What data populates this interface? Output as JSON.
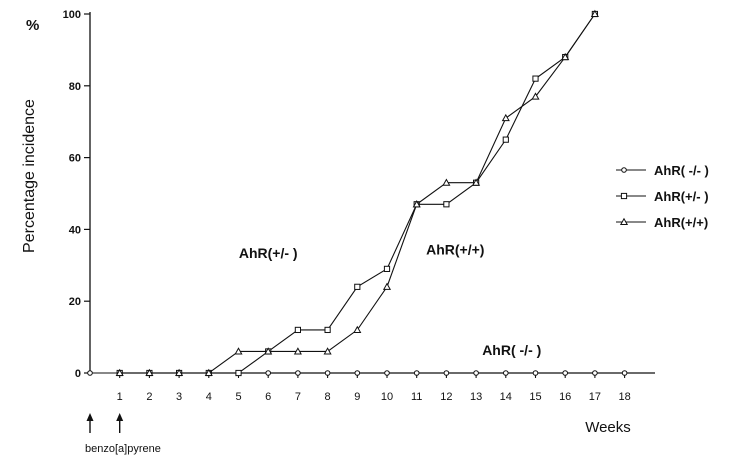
{
  "chart_data": {
    "type": "line",
    "title": "",
    "y_unit": "%",
    "ylabel": "Percentage incidence",
    "xlabel": "Weeks",
    "ylim": [
      0,
      100
    ],
    "xlim": [
      0,
      18
    ],
    "y_ticks": [
      "0",
      "20",
      "40",
      "60",
      "80",
      "100"
    ],
    "x_ticks": [
      "1",
      "2",
      "3",
      "4",
      "5",
      "6",
      "7",
      "8",
      "9",
      "10",
      "11",
      "12",
      "13",
      "14",
      "15",
      "16",
      "17",
      "18"
    ],
    "grid": false,
    "legend_position": "right",
    "series": [
      {
        "name": "AhR( -/- )",
        "marker": "circle",
        "x": [
          0,
          1,
          2,
          3,
          4,
          5,
          6,
          7,
          8,
          9,
          10,
          11,
          12,
          13,
          14,
          15,
          16,
          17,
          18
        ],
        "y": [
          0,
          0,
          0,
          0,
          0,
          0,
          0,
          0,
          0,
          0,
          0,
          0,
          0,
          0,
          0,
          0,
          0,
          0,
          0
        ]
      },
      {
        "name": "AhR(+/- )",
        "marker": "square",
        "x": [
          1,
          2,
          3,
          4,
          5,
          6,
          7,
          8,
          9,
          10,
          11,
          12,
          13,
          14,
          15,
          16,
          17
        ],
        "y": [
          0,
          0,
          0,
          0,
          0,
          6,
          12,
          12,
          24,
          29,
          47,
          47,
          53,
          65,
          82,
          88,
          100
        ]
      },
      {
        "name": "AhR(+/+)",
        "marker": "triangle",
        "x": [
          1,
          2,
          3,
          4,
          5,
          6,
          7,
          8,
          9,
          10,
          11,
          12,
          13,
          14,
          15,
          16,
          17
        ],
        "y": [
          0,
          0,
          0,
          0,
          6,
          6,
          6,
          6,
          12,
          24,
          47,
          53,
          53,
          71,
          77,
          88,
          100
        ]
      }
    ],
    "annotations": [
      {
        "text": "AhR(+/- )",
        "x": 6,
        "y": 32
      },
      {
        "text": "AhR(+/+)",
        "x": 12.3,
        "y": 33
      },
      {
        "text": "AhR( -/- )",
        "x": 14.2,
        "y": 5
      }
    ],
    "treatment": {
      "label": "benzo[a]pyrene",
      "arrows_at": [
        0,
        1
      ]
    }
  }
}
